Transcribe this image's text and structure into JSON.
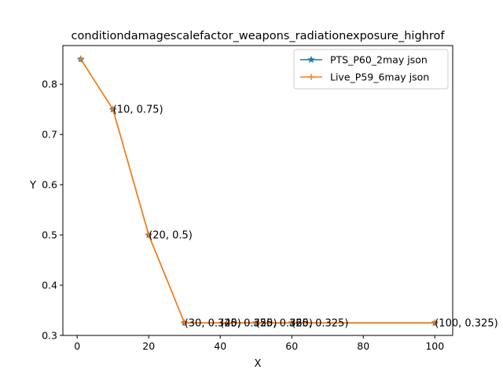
{
  "chart_data": {
    "type": "line",
    "title": "conditiondamagescalefactor_weapons_radiationexposure_highrof",
    "xlabel": "X",
    "ylabel": "Y",
    "xlim": [
      -4,
      105
    ],
    "ylim": [
      0.3,
      0.877
    ],
    "x_ticks": [
      0,
      20,
      40,
      60,
      80,
      100
    ],
    "y_ticks": [
      0.3,
      0.4,
      0.5,
      0.6,
      0.7,
      0.8
    ],
    "grid": false,
    "legend_position": "top-right",
    "series": [
      {
        "name": "PTS_P60_2may json",
        "color": "#1f77b4",
        "marker": "star",
        "x": [
          1,
          10,
          20,
          30,
          50,
          60,
          100
        ],
        "y": [
          0.85,
          0.75,
          0.5,
          0.325,
          0.325,
          0.325,
          0.325
        ]
      },
      {
        "name": "Live_P59_6may json",
        "color": "#ff7f0e",
        "marker": "plus",
        "x": [
          1,
          10,
          20,
          30,
          50,
          60,
          100
        ],
        "y": [
          0.85,
          0.75,
          0.5,
          0.325,
          0.325,
          0.325,
          0.325
        ]
      }
    ],
    "annotations": [
      {
        "x": 10,
        "y": 0.75,
        "text": "(10, 0.75)"
      },
      {
        "x": 20,
        "y": 0.5,
        "text": "(20, 0.5)"
      },
      {
        "x": 30,
        "y": 0.325,
        "text": "(30, 0.325)"
      },
      {
        "x": 40,
        "y": 0.325,
        "text": "(40, 0.325)"
      },
      {
        "x": 50,
        "y": 0.325,
        "text": "(50, 0.325)"
      },
      {
        "x": 60,
        "y": 0.325,
        "text": "(60, 0.325)"
      },
      {
        "x": 100,
        "y": 0.325,
        "text": "(100, 0.325)"
      }
    ]
  }
}
